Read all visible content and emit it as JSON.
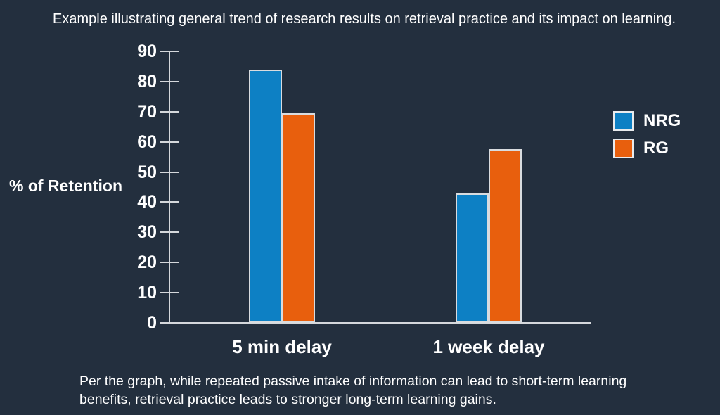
{
  "page": {
    "background_color": "#232F3E",
    "text_color": "#FFFFFF",
    "axis_color": "#D5D8DC"
  },
  "chart_data": {
    "type": "bar",
    "title": "Example illustrating general trend of research results on retrieval practice and its impact on learning.",
    "ylabel": "% of Retention",
    "xlabel": "",
    "categories": [
      "5 min delay",
      "1 week delay"
    ],
    "series": [
      {
        "name": "NRG",
        "color": "#0D80C4",
        "values": [
          84,
          43
        ]
      },
      {
        "name": "RG",
        "color": "#E85F0D",
        "values": [
          69.5,
          57.5
        ]
      }
    ],
    "ylim": [
      0,
      90
    ],
    "ytick_step": 10,
    "yticks": [
      0,
      10,
      20,
      30,
      40,
      50,
      60,
      70,
      80,
      90
    ],
    "grid": false,
    "legend_position": "right",
    "caption_lines": [
      "Per the graph, while repeated passive intake of information can lead to short-term learning",
      "benefits, retrieval practice leads to stronger long-term learning gains."
    ]
  }
}
